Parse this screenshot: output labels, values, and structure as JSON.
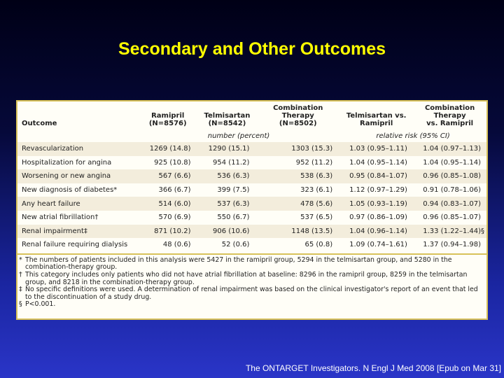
{
  "title": "Secondary and Other Outcomes",
  "table": {
    "headers": {
      "outcome": "Outcome",
      "ramipril": "Ramipril\n(N=8576)",
      "telmisartan": "Telmisartan\n(N=8542)",
      "combination": "Combination Therapy\n(N=8502)",
      "tel_vs_ram": "Telmisartan vs.\nRamipril",
      "comb_vs_ram": "Combination Therapy\nvs. Ramipril"
    },
    "subheader_counts": "number (percent)",
    "subheader_risk": "relative risk (95% CI)",
    "rows": [
      {
        "outcome": "Revascularization",
        "ramipril": "1269 (14.8)",
        "telmisartan": "1290 (15.1)",
        "combination": "1303 (15.3)",
        "tel_vs_ram": "1.03 (0.95–1.11)",
        "comb_vs_ram": "1.04 (0.97–1.13)"
      },
      {
        "outcome": "Hospitalization for angina",
        "ramipril": "925 (10.8)",
        "telmisartan": "954 (11.2)",
        "combination": "952 (11.2)",
        "tel_vs_ram": "1.04 (0.95–1.14)",
        "comb_vs_ram": "1.04 (0.95–1.14)"
      },
      {
        "outcome": "Worsening or new angina",
        "ramipril": "567 (6.6)",
        "telmisartan": "536 (6.3)",
        "combination": "538 (6.3)",
        "tel_vs_ram": "0.95 (0.84–1.07)",
        "comb_vs_ram": "0.96 (0.85–1.08)"
      },
      {
        "outcome": "New diagnosis of diabetes*",
        "ramipril": "366 (6.7)",
        "telmisartan": "399 (7.5)",
        "combination": "323 (6.1)",
        "tel_vs_ram": "1.12 (0.97–1.29)",
        "comb_vs_ram": "0.91 (0.78–1.06)"
      },
      {
        "outcome": "Any heart failure",
        "ramipril": "514 (6.0)",
        "telmisartan": "537 (6.3)",
        "combination": "478 (5.6)",
        "tel_vs_ram": "1.05 (0.93–1.19)",
        "comb_vs_ram": "0.94 (0.83–1.07)"
      },
      {
        "outcome": "New atrial fibrillation†",
        "ramipril": "570 (6.9)",
        "telmisartan": "550 (6.7)",
        "combination": "537 (6.5)",
        "tel_vs_ram": "0.97 (0.86–1.09)",
        "comb_vs_ram": "0.96 (0.85–1.07)"
      },
      {
        "outcome": "Renal impairment‡",
        "ramipril": "871 (10.2)",
        "telmisartan": "906 (10.6)",
        "combination": "1148 (13.5)",
        "tel_vs_ram": "1.04 (0.96–1.14)",
        "comb_vs_ram": "1.33 (1.22–1.44)§"
      },
      {
        "outcome": "Renal failure requiring dialysis",
        "ramipril": "48 (0.6)",
        "telmisartan": "52 (0.6)",
        "combination": "65 (0.8)",
        "tel_vs_ram": "1.09 (0.74–1.61)",
        "comb_vs_ram": "1.37 (0.94–1.98)"
      }
    ]
  },
  "footnotes": [
    {
      "symbol": "*",
      "text": "The numbers of patients included in this analysis were 5427 in the ramipril group, 5294 in the telmisartan group, and 5280 in the combination-therapy group."
    },
    {
      "symbol": "†",
      "text": "This category includes only patients who did not have atrial fibrillation at baseline: 8296 in the ramipril group, 8259 in the telmisartan group, and 8218 in the combination-therapy group."
    },
    {
      "symbol": "‡",
      "text": "No specific definitions were used. A determination of renal impairment was based on the clinical investigator's report of an event that led to the discontinuation of a study drug."
    },
    {
      "symbol": "§",
      "text": "P<0.001."
    }
  ],
  "citation": "The ONTARGET Investigators. N Engl J Med 2008 [Epub on Mar 31]"
}
